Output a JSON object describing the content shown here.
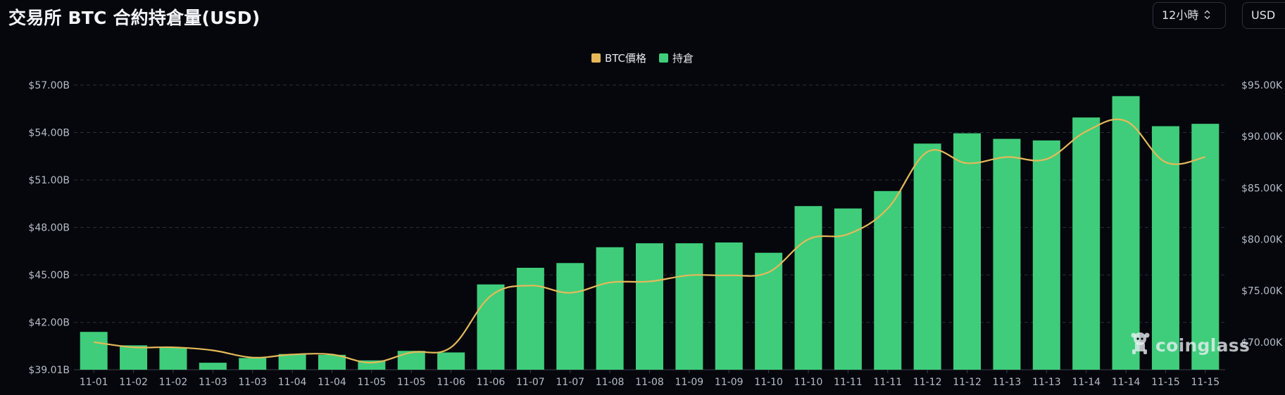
{
  "header": {
    "title": "交易所 BTC 合約持倉量(USD)",
    "interval_select": "12小時",
    "currency_select": "USD"
  },
  "icons": {
    "interval_chevron": "chevron-up-down-icon",
    "watermark_logo": "coinglass-logo-icon"
  },
  "watermark": {
    "text": "coinglass"
  },
  "colors": {
    "background": "#05070c",
    "bar": "#3fcd7b",
    "line": "#e5b95a",
    "grid": "#2a2f3a",
    "axis_text": "#b6bcc8"
  },
  "chart_data": {
    "type": "bar",
    "title": "交易所 BTC 合約持倉量(USD)",
    "legend": [
      "BTC價格",
      "持倉"
    ],
    "legend_position": "top-center",
    "grid": true,
    "categories": [
      "11-01",
      "11-02",
      "11-02",
      "11-03",
      "11-03",
      "11-04",
      "11-04",
      "11-05",
      "11-05",
      "11-06",
      "11-06",
      "11-07",
      "11-07",
      "11-08",
      "11-08",
      "11-09",
      "11-09",
      "11-10",
      "11-10",
      "11-11",
      "11-11",
      "11-12",
      "11-12",
      "11-13",
      "11-13",
      "11-14",
      "11-14",
      "11-15",
      "11-15"
    ],
    "left_axis": {
      "ticks": [
        "$39.01B",
        "$42.00B",
        "$45.00B",
        "$48.00B",
        "$51.00B",
        "$54.00B",
        "$57.00B"
      ],
      "tick_values": [
        39.01,
        42,
        45,
        48,
        51,
        54,
        57
      ],
      "range": [
        39.01,
        57.0
      ],
      "unit": "B USD"
    },
    "right_axis": {
      "ticks": [
        "$70.00K",
        "$75.00K",
        "$80.00K",
        "$85.00K",
        "$90.00K",
        "$95.00K"
      ],
      "tick_values": [
        70,
        75,
        80,
        85,
        90,
        95
      ],
      "range": [
        67.32,
        95.0
      ],
      "unit": "K USD"
    },
    "series": [
      {
        "name": "持倉",
        "type": "bar",
        "axis": "left",
        "values": [
          41.4,
          40.55,
          40.4,
          39.45,
          39.75,
          40.0,
          39.95,
          39.6,
          40.2,
          40.1,
          44.4,
          45.45,
          45.75,
          46.75,
          47.0,
          47.0,
          47.05,
          46.4,
          49.35,
          49.2,
          50.3,
          53.3,
          53.95,
          53.6,
          53.5,
          54.95,
          56.3,
          54.4,
          54.55
        ]
      },
      {
        "name": "BTC價格",
        "type": "line",
        "axis": "right",
        "values": [
          70.0,
          69.5,
          69.5,
          69.2,
          68.5,
          68.8,
          68.8,
          68.0,
          69.0,
          69.5,
          74.5,
          75.5,
          74.8,
          75.8,
          75.9,
          76.5,
          76.5,
          76.8,
          80.0,
          80.5,
          83.0,
          88.5,
          87.4,
          88.0,
          87.8,
          90.5,
          91.5,
          87.5,
          88.0
        ]
      }
    ]
  }
}
